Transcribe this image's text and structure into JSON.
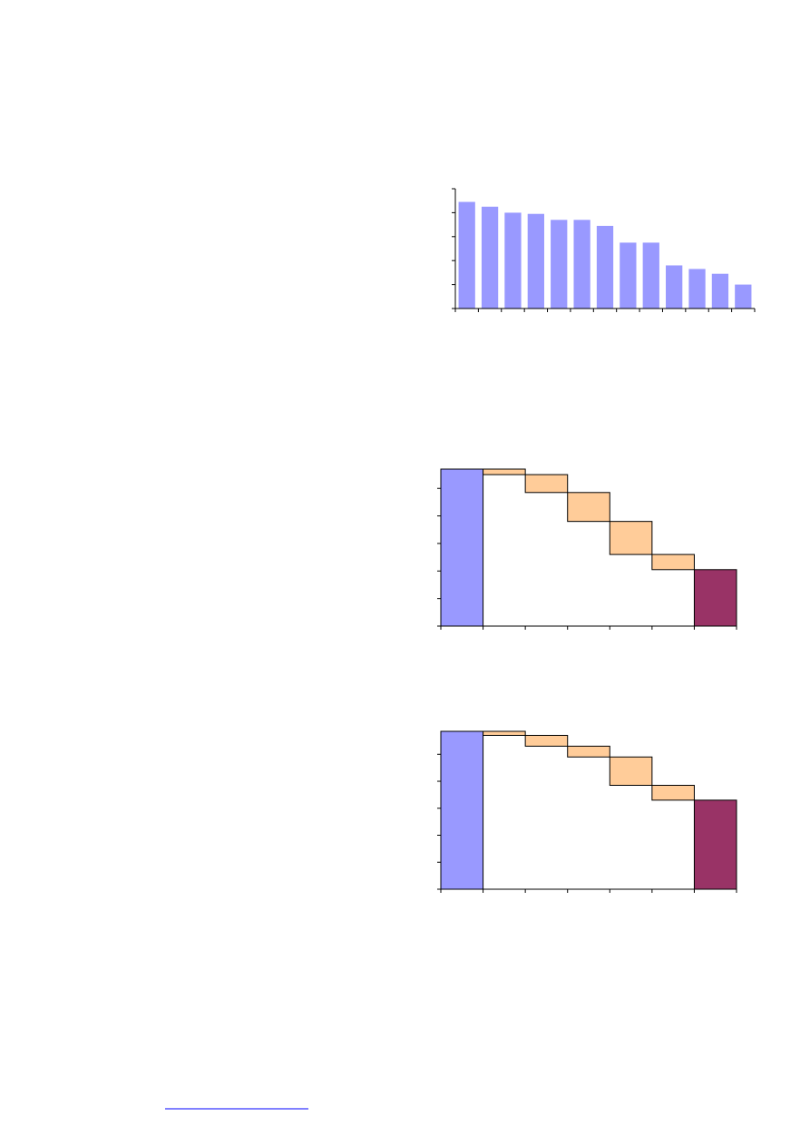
{
  "chart_data": [
    {
      "type": "bar",
      "color": "#9999ff",
      "categories": [
        null,
        null,
        null,
        null,
        null,
        null,
        null,
        null,
        null,
        null,
        null,
        null,
        null
      ],
      "values": [
        4.45,
        4.25,
        4.0,
        3.95,
        3.7,
        3.7,
        3.45,
        2.75,
        2.75,
        1.8,
        1.65,
        1.45,
        1.0
      ],
      "ylim": [
        0,
        5
      ],
      "yticks": [
        0,
        1,
        2,
        3,
        4,
        5
      ],
      "grid": false
    },
    {
      "type": "waterfall",
      "colors": [
        "#9999ff",
        "#ffcc99",
        "#993366"
      ],
      "categories": [
        null,
        null,
        null,
        null,
        null,
        null,
        null
      ],
      "values": [
        5.7,
        -0.2,
        -0.65,
        -1.05,
        -1.2,
        -0.55,
        2.05
      ],
      "ylim": [
        0,
        5.7
      ],
      "yticks": [
        0,
        1,
        2,
        3,
        4,
        5
      ],
      "grid": false
    },
    {
      "type": "waterfall",
      "colors": [
        "#9999ff",
        "#ffcc99",
        "#993366"
      ],
      "categories": [
        null,
        null,
        null,
        null,
        null,
        null,
        null
      ],
      "values": [
        5.85,
        -0.15,
        -0.4,
        -0.4,
        -1.05,
        -0.55,
        3.3
      ],
      "ylim": [
        0,
        5.85
      ],
      "yticks": [
        0,
        1,
        2,
        3,
        4,
        5
      ],
      "grid": false
    }
  ]
}
